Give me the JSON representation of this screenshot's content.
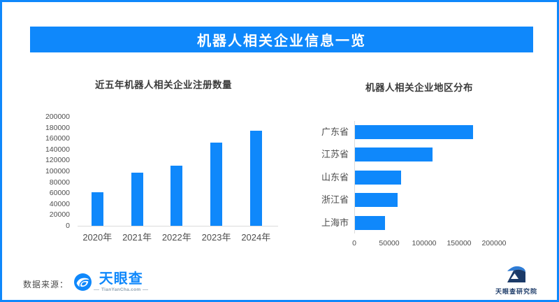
{
  "page": {
    "title": "机器人相关企业信息一览",
    "accent_color": "#0F88FB",
    "navy_color": "#1B3A68",
    "axis_line_color": "#DCDCDC"
  },
  "chart_data": [
    {
      "type": "bar",
      "title": "近五年机器人相关企业注册数量",
      "categories": [
        "2020年",
        "2021年",
        "2022年",
        "2023年",
        "2024年"
      ],
      "values": [
        62000,
        97000,
        110000,
        152000,
        175000
      ],
      "ylim": [
        0,
        200000
      ],
      "yticks": [
        0,
        20000,
        40000,
        60000,
        80000,
        100000,
        120000,
        140000,
        160000,
        180000,
        200000
      ],
      "grid": false,
      "legend": "none",
      "bar_color": "#0F88FB"
    },
    {
      "type": "bar-horizontal",
      "title": "机器人相关企业地区分布",
      "categories": [
        "广东省",
        "江苏省",
        "山东省",
        "浙江省",
        "上海市"
      ],
      "values": [
        169000,
        111000,
        66000,
        61000,
        43000
      ],
      "xlim": [
        0,
        200000
      ],
      "xticks": [
        0,
        50000,
        100000,
        150000,
        200000
      ],
      "grid": false,
      "legend": "none",
      "bar_color": "#0F88FB"
    }
  ],
  "footer": {
    "source_label": "数据来源：",
    "logo_name": "天眼查",
    "logo_sub": "TianYanCha.com",
    "institute_name": "天眼查研究院"
  }
}
